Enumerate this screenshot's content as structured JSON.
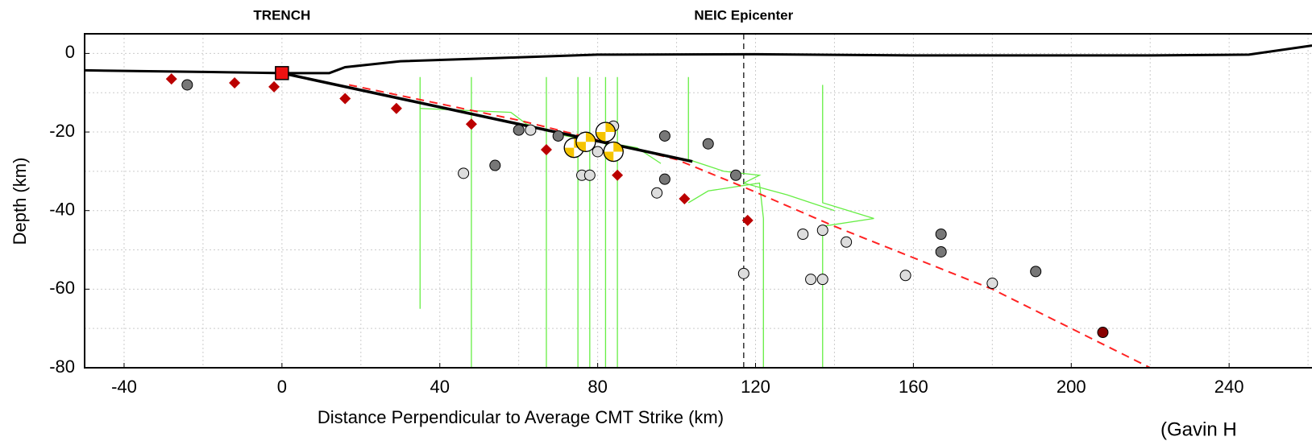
{
  "chart_data": {
    "type": "scatter",
    "xlabel": "Distance Perpendicular to Average CMT Strike (km)",
    "ylabel": "Depth (km)",
    "credit": "(Gavin H",
    "xlim": [
      -50,
      261
    ],
    "ylim": [
      -80,
      5
    ],
    "xticks": [
      -40,
      0,
      40,
      80,
      120,
      160,
      200,
      240
    ],
    "yticks": [
      -80,
      -60,
      -40,
      -20,
      0
    ],
    "xgrid": [
      -40,
      -20,
      0,
      20,
      40,
      60,
      80,
      100,
      120,
      140,
      160,
      180,
      200,
      220,
      240,
      260
    ],
    "ygrid": [
      -70,
      -60,
      -50,
      -40,
      -30,
      -20,
      -10,
      0
    ],
    "annotations": [
      {
        "text": "TRENCH",
        "x": 0
      },
      {
        "text": "NEIC Epicenter",
        "x": 117,
        "line": true
      }
    ],
    "series": [
      {
        "marker": "line",
        "color": "#66ee44",
        "width": 1.3,
        "x": [
          35,
          35
        ],
        "y": [
          -6,
          -65
        ]
      },
      {
        "marker": "line",
        "color": "#66ee44",
        "width": 1.3,
        "x": [
          35,
          58,
          62,
          72,
          90,
          96
        ],
        "y": [
          -14,
          -15,
          -18,
          -21,
          -24,
          -28
        ]
      },
      {
        "marker": "line",
        "color": "#66ee44",
        "width": 1.3,
        "x": [
          48,
          48
        ],
        "y": [
          -6,
          -80
        ]
      },
      {
        "marker": "line",
        "color": "#66ee44",
        "width": 1.3,
        "x": [
          67,
          67
        ],
        "y": [
          -6,
          -80
        ]
      },
      {
        "marker": "line",
        "color": "#66ee44",
        "width": 1.3,
        "x": [
          75,
          75
        ],
        "y": [
          -6,
          -80
        ]
      },
      {
        "marker": "line",
        "color": "#66ee44",
        "width": 1.3,
        "x": [
          78,
          78
        ],
        "y": [
          -6,
          -80
        ]
      },
      {
        "marker": "line",
        "color": "#66ee44",
        "width": 1.3,
        "x": [
          82,
          82
        ],
        "y": [
          -6,
          -80
        ]
      },
      {
        "marker": "line",
        "color": "#66ee44",
        "width": 1.3,
        "x": [
          85,
          85
        ],
        "y": [
          -6,
          -80
        ]
      },
      {
        "marker": "line",
        "color": "#66ee44",
        "width": 1.3,
        "x": [
          103,
          103,
          112,
          121,
          117
        ],
        "y": [
          -6,
          -27,
          -30,
          -31,
          -33
        ]
      },
      {
        "marker": "line",
        "color": "#66ee44",
        "width": 1.3,
        "x": [
          103,
          108,
          121,
          122,
          122
        ],
        "y": [
          -38,
          -35,
          -33,
          -42,
          -80
        ]
      },
      {
        "marker": "line",
        "color": "#66ee44",
        "width": 1.3,
        "x": [
          137,
          137,
          150,
          137,
          137
        ],
        "y": [
          -8,
          -38,
          -42,
          -44,
          -80
        ]
      },
      {
        "marker": "line",
        "color": "#66ee44",
        "width": 1.3,
        "x": [
          117,
          128,
          140
        ],
        "y": [
          -33,
          -36,
          -40
        ]
      },
      {
        "marker": "line",
        "color": "#000000",
        "width": 3,
        "x": [
          -50,
          -20,
          0,
          12,
          16,
          30,
          60,
          80,
          120,
          160,
          220,
          245,
          261
        ],
        "y": [
          -4.3,
          -4.7,
          -5,
          -5,
          -3.5,
          -2,
          -1,
          -0.3,
          -0.2,
          -0.5,
          -0.5,
          -0.3,
          2
        ]
      },
      {
        "marker": "line",
        "color": "#ff2222",
        "width": 2,
        "dashed": true,
        "x": [
          17,
          60,
          100,
          117,
          140,
          180,
          220
        ],
        "y": [
          -8,
          -17,
          -27,
          -34,
          -44,
          -60,
          -80
        ]
      },
      {
        "marker": "line",
        "color": "#000000",
        "width": 3.5,
        "x": [
          0,
          104
        ],
        "y": [
          -5,
          -27.5
        ]
      },
      {
        "marker": "square",
        "color": "#ee1111",
        "x": [
          0
        ],
        "y": [
          -5
        ]
      },
      {
        "marker": "diamond",
        "color": "#bb0000",
        "x": [
          -28,
          -12,
          -2,
          16,
          29,
          48,
          67,
          85,
          102,
          118
        ],
        "y": [
          -6.5,
          -7.5,
          -8.5,
          -11.5,
          -14,
          -18,
          -24.5,
          -31,
          -37,
          -42.5
        ]
      },
      {
        "marker": "circle",
        "color": "#777777",
        "x": [
          -24,
          54,
          60,
          70,
          97,
          97,
          108,
          115,
          167,
          167,
          191
        ],
        "y": [
          -8,
          -28.5,
          -19.5,
          -21,
          -21,
          -32,
          -23,
          -31,
          -46,
          -50.5,
          -55.5
        ]
      },
      {
        "marker": "circle",
        "color": "#dddddd",
        "x": [
          46,
          63,
          76,
          78,
          80,
          84,
          95,
          132,
          137,
          143,
          117,
          134,
          137,
          158,
          180
        ],
        "y": [
          -30.5,
          -19.5,
          -31,
          -31,
          -25,
          -18.5,
          -35.5,
          -46,
          -45,
          -48,
          -56,
          -57.5,
          -57.5,
          -56.5,
          -58.5
        ]
      },
      {
        "marker": "circle",
        "color": "#880000",
        "x": [
          208
        ],
        "y": [
          -71
        ]
      },
      {
        "marker": "beachball",
        "color": "#f5c400",
        "x": [
          74,
          77,
          82,
          84
        ],
        "y": [
          -24,
          -22.5,
          -20,
          -25
        ]
      }
    ]
  }
}
